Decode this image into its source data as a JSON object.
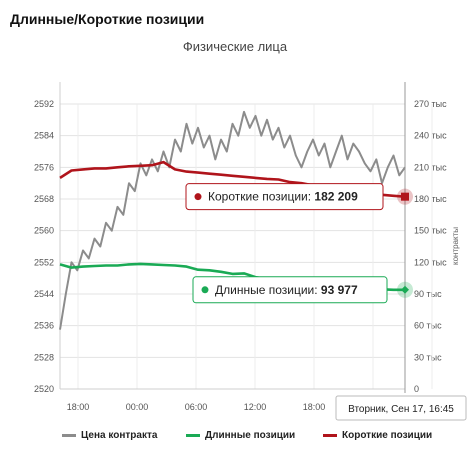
{
  "page_title": "Длинные/Короткие позиции",
  "chart_data": {
    "type": "line",
    "title": "Физические лица",
    "x_tick_labels": [
      "18:00",
      "00:00",
      "06:00",
      "12:00",
      "18:00",
      "00:00",
      "06:00",
      "12:00",
      "18:00"
    ],
    "left_axis": {
      "ylim": [
        2520,
        2592
      ],
      "ticks": [
        2520,
        2528,
        2536,
        2544,
        2552,
        2560,
        2568,
        2576,
        2584,
        2592
      ]
    },
    "right_axis": {
      "label": "контракты",
      "ylim": [
        0,
        270000
      ],
      "ticks": [
        0,
        30000,
        60000,
        90000,
        120000,
        150000,
        180000,
        210000,
        240000,
        270000
      ],
      "tick_labels": [
        "0",
        "30 тыс",
        "60 тыс",
        "90 тыс",
        "120 тыс",
        "150 тыс",
        "180 тыс",
        "210 тыс",
        "240 тыс",
        "270 тыс"
      ]
    },
    "series": [
      {
        "name": "Цена контракта",
        "axis": "left",
        "color": "#8c8c8c",
        "x": [
          0,
          1,
          2,
          3,
          4,
          5,
          6,
          7,
          8,
          9,
          10,
          11,
          12,
          13,
          14,
          15,
          16,
          17,
          18,
          19,
          20,
          21,
          22,
          23,
          24,
          25,
          26,
          27,
          28,
          29,
          30,
          31,
          32,
          33,
          34,
          35,
          36,
          37,
          38,
          39,
          40,
          41,
          42,
          43,
          44,
          45,
          46,
          47,
          48,
          49,
          50,
          51,
          52,
          53,
          54,
          55,
          56,
          57,
          58,
          59,
          60
        ],
        "values": [
          2535,
          2544,
          2552,
          2550,
          2555,
          2553,
          2558,
          2556,
          2562,
          2560,
          2566,
          2564,
          2572,
          2570,
          2577,
          2574,
          2578,
          2575,
          2580,
          2576,
          2583,
          2580,
          2587,
          2582,
          2586,
          2581,
          2584,
          2578,
          2583,
          2580,
          2587,
          2584,
          2590,
          2586,
          2589,
          2584,
          2588,
          2583,
          2586,
          2581,
          2584,
          2579,
          2576,
          2580,
          2583,
          2579,
          2582,
          2576,
          2580,
          2584,
          2578,
          2582,
          2580,
          2577,
          2575,
          2578,
          2572,
          2576,
          2579,
          2574,
          2576
        ]
      },
      {
        "name": "Длинные позиции",
        "axis": "right",
        "color": "#1aaa55",
        "x": [
          0,
          2,
          4,
          6,
          8,
          10,
          12,
          14,
          16,
          18,
          20,
          22,
          24,
          26,
          28,
          30,
          32,
          34,
          36,
          38,
          40,
          42,
          44,
          46,
          48,
          50,
          52,
          54,
          56,
          58,
          60
        ],
        "values": [
          118000,
          115000,
          116000,
          116500,
          117000,
          117000,
          118000,
          118500,
          118000,
          117500,
          117000,
          116000,
          113000,
          112500,
          111000,
          109000,
          109500,
          106000,
          104000,
          103000,
          101000,
          100000,
          99000,
          98500,
          97000,
          96000,
          95500,
          95000,
          94500,
          94000,
          93977
        ]
      },
      {
        "name": "Короткие позиции",
        "axis": "right",
        "color": "#b0141b",
        "x": [
          0,
          2,
          4,
          6,
          8,
          10,
          12,
          14,
          16,
          18,
          20,
          22,
          24,
          26,
          28,
          30,
          32,
          34,
          36,
          38,
          40,
          42,
          44,
          46,
          48,
          50,
          52,
          54,
          56,
          58,
          60
        ],
        "values": [
          200000,
          207000,
          208000,
          209000,
          209000,
          210000,
          211000,
          211500,
          212000,
          215000,
          208000,
          206000,
          205000,
          204000,
          203000,
          202000,
          201000,
          200000,
          199000,
          198500,
          196000,
          195000,
          193000,
          191000,
          189500,
          188000,
          186500,
          185500,
          184000,
          183000,
          182209
        ]
      }
    ],
    "tooltips": [
      {
        "label": "Короткие позиции:",
        "value": "182 209",
        "color": "#b0141b"
      },
      {
        "label": "Длинные позиции:",
        "value": "93 977",
        "color": "#1aaa55"
      }
    ],
    "crosshair_label": "Вторник, Сен 17, 16:45",
    "legend_placement": "bottom",
    "grid": true
  }
}
